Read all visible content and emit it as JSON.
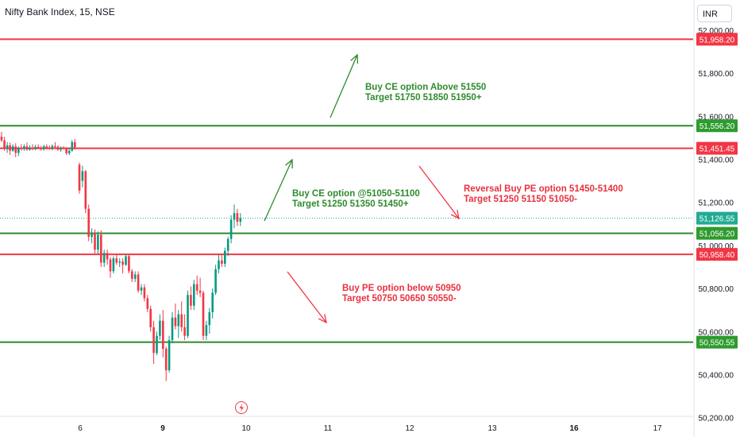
{
  "header": {
    "title": "Nifty Bank Index, 15, NSE",
    "currency": "INR"
  },
  "colors": {
    "up": "#089981",
    "down": "#f23645",
    "green_line": "#2e8b2e",
    "red_line": "#f23645",
    "price_tag": "#22ab94",
    "axis_text": "#131722"
  },
  "icons": {
    "event": "lightning-icon"
  },
  "chart_data": {
    "type": "candlestick",
    "y_axis": {
      "range": [
        50150,
        52050
      ],
      "ticks": [
        "52,000.00",
        "51,800.00",
        "51,600.00",
        "51,400.00",
        "51,200.00",
        "51,000.00",
        "50,800.00",
        "50,600.00",
        "50,400.00",
        "50,200.00"
      ],
      "tick_values": [
        52000,
        51800,
        51600,
        51400,
        51200,
        51000,
        50800,
        50600,
        50400,
        50200
      ]
    },
    "x_axis": {
      "labels": [
        "6",
        "9",
        "10",
        "11",
        "12",
        "13",
        "16",
        "17"
      ],
      "bold": [
        "9",
        "16"
      ]
    },
    "current_price": {
      "value": 51126.55,
      "label": "51,126.55"
    },
    "levels": [
      {
        "value": 51958.2,
        "label": "51,958.20",
        "color": "red"
      },
      {
        "value": 51556.2,
        "label": "51,556.20",
        "color": "green"
      },
      {
        "value": 51451.45,
        "label": "51,451.45",
        "color": "red"
      },
      {
        "value": 51056.2,
        "label": "51,056.20",
        "color": "green"
      },
      {
        "value": 50958.4,
        "label": "50,958.40",
        "color": "red"
      },
      {
        "value": 50550.55,
        "label": "50,550.55",
        "color": "green"
      }
    ],
    "annotations": [
      {
        "color": "green",
        "lines": [
          "Buy CE option Above 51550",
          "Target 51750 51850 51950+"
        ]
      },
      {
        "color": "green",
        "lines": [
          "Buy CE option @51050-51100",
          "Target 51250 51350 51450+"
        ]
      },
      {
        "color": "red",
        "lines": [
          "Reversal Buy PE option 51450-51400",
          "Target 51250 51150 51050-"
        ]
      },
      {
        "color": "red",
        "lines": [
          "Buy PE option below 50950",
          "Target 50750 50650 50550-"
        ]
      }
    ],
    "arrows": [
      {
        "direction": "up",
        "color": "green"
      },
      {
        "direction": "up",
        "color": "green"
      },
      {
        "direction": "down",
        "color": "red"
      },
      {
        "direction": "down",
        "color": "red"
      }
    ],
    "candles": [
      {
        "o": 51505,
        "h": 51528,
        "l": 51480,
        "c": 51488
      },
      {
        "o": 51488,
        "h": 51505,
        "l": 51440,
        "c": 51450
      },
      {
        "o": 51450,
        "h": 51480,
        "l": 51430,
        "c": 51465
      },
      {
        "o": 51465,
        "h": 51478,
        "l": 51420,
        "c": 51440
      },
      {
        "o": 51440,
        "h": 51470,
        "l": 51435,
        "c": 51460
      },
      {
        "o": 51460,
        "h": 51475,
        "l": 51410,
        "c": 51430
      },
      {
        "o": 51430,
        "h": 51460,
        "l": 51415,
        "c": 51452
      },
      {
        "o": 51452,
        "h": 51470,
        "l": 51440,
        "c": 51448
      },
      {
        "o": 51448,
        "h": 51470,
        "l": 51440,
        "c": 51460
      },
      {
        "o": 51460,
        "h": 51478,
        "l": 51440,
        "c": 51445
      },
      {
        "o": 51445,
        "h": 51465,
        "l": 51440,
        "c": 51455
      },
      {
        "o": 51455,
        "h": 51470,
        "l": 51443,
        "c": 51450
      },
      {
        "o": 51450,
        "h": 51468,
        "l": 51442,
        "c": 51458
      },
      {
        "o": 51458,
        "h": 51470,
        "l": 51448,
        "c": 51452
      },
      {
        "o": 51452,
        "h": 51462,
        "l": 51440,
        "c": 51447
      },
      {
        "o": 51447,
        "h": 51468,
        "l": 51440,
        "c": 51460
      },
      {
        "o": 51460,
        "h": 51470,
        "l": 51447,
        "c": 51455
      },
      {
        "o": 51455,
        "h": 51465,
        "l": 51445,
        "c": 51450
      },
      {
        "o": 51450,
        "h": 51470,
        "l": 51442,
        "c": 51462
      },
      {
        "o": 51462,
        "h": 51480,
        "l": 51450,
        "c": 51458
      },
      {
        "o": 51458,
        "h": 51465,
        "l": 51440,
        "c": 51445
      },
      {
        "o": 51445,
        "h": 51460,
        "l": 51435,
        "c": 51452
      },
      {
        "o": 51452,
        "h": 51462,
        "l": 51446,
        "c": 51450
      },
      {
        "o": 51450,
        "h": 51456,
        "l": 51420,
        "c": 51428
      },
      {
        "o": 51428,
        "h": 51450,
        "l": 51420,
        "c": 51440
      },
      {
        "o": 51440,
        "h": 51490,
        "l": 51436,
        "c": 51480
      },
      {
        "o": 51480,
        "h": 51495,
        "l": 51445,
        "c": 51455
      },
      {
        "o": 51375,
        "h": 51385,
        "l": 51240,
        "c": 51255
      },
      {
        "o": 51300,
        "h": 51370,
        "l": 51270,
        "c": 51345
      },
      {
        "o": 51345,
        "h": 51350,
        "l": 51150,
        "c": 51170
      },
      {
        "o": 51170,
        "h": 51190,
        "l": 51020,
        "c": 51040
      },
      {
        "o": 51040,
        "h": 51080,
        "l": 51010,
        "c": 51060
      },
      {
        "o": 51060,
        "h": 51075,
        "l": 50960,
        "c": 50980
      },
      {
        "o": 50980,
        "h": 51065,
        "l": 50960,
        "c": 51050
      },
      {
        "o": 51050,
        "h": 51070,
        "l": 50900,
        "c": 50920
      },
      {
        "o": 50920,
        "h": 50980,
        "l": 50900,
        "c": 50965
      },
      {
        "o": 50965,
        "h": 50980,
        "l": 50910,
        "c": 50935
      },
      {
        "o": 50935,
        "h": 50945,
        "l": 50850,
        "c": 50880
      },
      {
        "o": 50880,
        "h": 50950,
        "l": 50870,
        "c": 50940
      },
      {
        "o": 50940,
        "h": 50960,
        "l": 50910,
        "c": 50920
      },
      {
        "o": 50920,
        "h": 50940,
        "l": 50900,
        "c": 50925
      },
      {
        "o": 50925,
        "h": 50940,
        "l": 50870,
        "c": 50910
      },
      {
        "o": 50910,
        "h": 50960,
        "l": 50905,
        "c": 50950
      },
      {
        "o": 50950,
        "h": 50960,
        "l": 50870,
        "c": 50880
      },
      {
        "o": 50880,
        "h": 50890,
        "l": 50830,
        "c": 50845
      },
      {
        "o": 50845,
        "h": 50880,
        "l": 50830,
        "c": 50865
      },
      {
        "o": 50865,
        "h": 50880,
        "l": 50780,
        "c": 50790
      },
      {
        "o": 50790,
        "h": 50820,
        "l": 50770,
        "c": 50805
      },
      {
        "o": 50805,
        "h": 50820,
        "l": 50740,
        "c": 50755
      },
      {
        "o": 50755,
        "h": 50770,
        "l": 50690,
        "c": 50705
      },
      {
        "o": 50705,
        "h": 50720,
        "l": 50600,
        "c": 50620
      },
      {
        "o": 50620,
        "h": 50650,
        "l": 50450,
        "c": 50500
      },
      {
        "o": 50500,
        "h": 50600,
        "l": 50490,
        "c": 50580
      },
      {
        "o": 50580,
        "h": 50680,
        "l": 50560,
        "c": 50650
      },
      {
        "o": 50650,
        "h": 50700,
        "l": 50480,
        "c": 50520
      },
      {
        "o": 50520,
        "h": 50530,
        "l": 50370,
        "c": 50420
      },
      {
        "o": 50420,
        "h": 50580,
        "l": 50410,
        "c": 50560
      },
      {
        "o": 50560,
        "h": 50690,
        "l": 50545,
        "c": 50665
      },
      {
        "o": 50665,
        "h": 50730,
        "l": 50610,
        "c": 50625
      },
      {
        "o": 50625,
        "h": 50700,
        "l": 50570,
        "c": 50680
      },
      {
        "o": 50680,
        "h": 50740,
        "l": 50600,
        "c": 50620
      },
      {
        "o": 50620,
        "h": 50680,
        "l": 50560,
        "c": 50580
      },
      {
        "o": 50580,
        "h": 50790,
        "l": 50570,
        "c": 50770
      },
      {
        "o": 50770,
        "h": 50810,
        "l": 50700,
        "c": 50720
      },
      {
        "o": 50720,
        "h": 50840,
        "l": 50700,
        "c": 50820
      },
      {
        "o": 50820,
        "h": 50860,
        "l": 50770,
        "c": 50790
      },
      {
        "o": 50790,
        "h": 50850,
        "l": 50760,
        "c": 50780
      },
      {
        "o": 50780,
        "h": 50790,
        "l": 50560,
        "c": 50580
      },
      {
        "o": 50580,
        "h": 50650,
        "l": 50560,
        "c": 50630
      },
      {
        "o": 50630,
        "h": 50710,
        "l": 50590,
        "c": 50690
      },
      {
        "o": 50690,
        "h": 50800,
        "l": 50660,
        "c": 50780
      },
      {
        "o": 50780,
        "h": 50910,
        "l": 50770,
        "c": 50890
      },
      {
        "o": 50890,
        "h": 50960,
        "l": 50870,
        "c": 50930
      },
      {
        "o": 50930,
        "h": 50960,
        "l": 50900,
        "c": 50915
      },
      {
        "o": 50915,
        "h": 50990,
        "l": 50900,
        "c": 50975
      },
      {
        "o": 50975,
        "h": 51040,
        "l": 50950,
        "c": 51030
      },
      {
        "o": 51030,
        "h": 51140,
        "l": 51010,
        "c": 51120
      },
      {
        "o": 51120,
        "h": 51190,
        "l": 51080,
        "c": 51150
      },
      {
        "o": 51150,
        "h": 51170,
        "l": 51090,
        "c": 51110
      },
      {
        "o": 51110,
        "h": 51150,
        "l": 51090,
        "c": 51127
      }
    ]
  }
}
